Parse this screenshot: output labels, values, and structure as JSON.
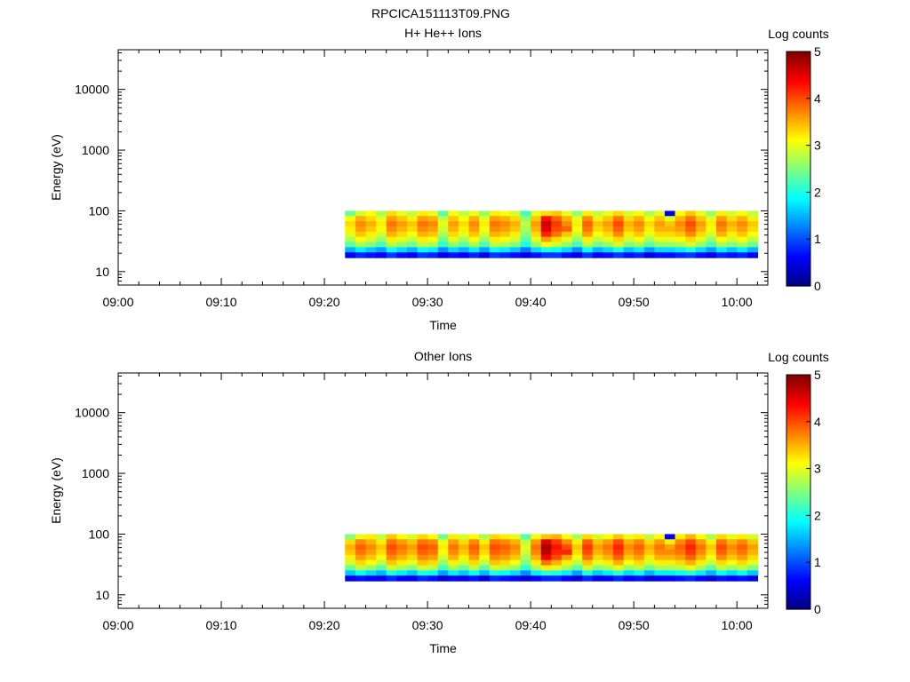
{
  "figure_title": "RPCICA151113T09.PNG",
  "chart_data": [
    {
      "type": "heatmap",
      "title": "H+ He++ Ions",
      "xlabel": "Time",
      "ylabel": "Energy (eV)",
      "x_ticks": [
        "09:00",
        "09:10",
        "09:20",
        "09:30",
        "09:40",
        "09:50",
        "10:00"
      ],
      "x_range": [
        "09:00",
        "10:03"
      ],
      "y_ticks": [
        "10",
        "100",
        "1000",
        "10000"
      ],
      "y_scale": "log",
      "y_range": [
        6,
        45000
      ],
      "colorbar": {
        "label": "Log counts",
        "ticks": [
          "0",
          "1",
          "2",
          "3",
          "4",
          "5"
        ],
        "range": [
          0,
          5
        ],
        "colormap": "jet"
      },
      "data_time_range": [
        "09:22",
        "10:02"
      ],
      "data_energy_range": [
        17,
        100
      ],
      "time_bins": [
        "09:22",
        "09:23",
        "09:24",
        "09:25",
        "09:26",
        "09:27",
        "09:28",
        "09:29",
        "09:30",
        "09:31",
        "09:32",
        "09:33",
        "09:34",
        "09:35",
        "09:36",
        "09:37",
        "09:38",
        "09:39",
        "09:40",
        "09:41",
        "09:42",
        "09:43",
        "09:44",
        "09:45",
        "09:46",
        "09:47",
        "09:48",
        "09:49",
        "09:50",
        "09:51",
        "09:52",
        "09:53",
        "09:54",
        "09:55",
        "09:56",
        "09:57",
        "09:58",
        "09:59",
        "10:00",
        "10:01"
      ],
      "energy_bins": [
        100,
        80,
        65,
        52,
        43,
        35,
        29,
        24,
        20
      ],
      "z_log_counts": [
        [
          2.4,
          2.9,
          3.1,
          2.7,
          3.3,
          3.0,
          2.8,
          3.2,
          3.0,
          2.3,
          3.1,
          2.8,
          3.0,
          2.6,
          3.2,
          3.1,
          2.9,
          2.2,
          3.0,
          3.3,
          3.4,
          3.0,
          2.6,
          3.2,
          2.8,
          3.0,
          3.3,
          2.9,
          3.1,
          2.7,
          3.0,
          0.5,
          3.1,
          3.4,
          3.0,
          2.6,
          3.2,
          2.9,
          3.1,
          2.8
        ],
        [
          3.1,
          3.5,
          3.3,
          3.0,
          3.6,
          3.4,
          3.2,
          3.6,
          3.5,
          2.8,
          3.4,
          3.1,
          3.5,
          3.0,
          3.6,
          3.5,
          3.3,
          2.6,
          3.4,
          4.3,
          3.9,
          3.5,
          3.0,
          3.7,
          3.2,
          3.4,
          3.8,
          3.3,
          3.5,
          3.1,
          3.4,
          3.0,
          3.5,
          3.8,
          3.4,
          3.0,
          3.6,
          3.3,
          3.5,
          3.2
        ],
        [
          3.3,
          3.7,
          3.5,
          3.2,
          3.8,
          3.6,
          3.4,
          3.8,
          3.7,
          3.0,
          3.6,
          3.3,
          3.7,
          3.2,
          3.8,
          3.7,
          3.5,
          2.8,
          3.6,
          4.6,
          4.1,
          3.7,
          3.2,
          3.9,
          3.4,
          3.6,
          4.0,
          3.5,
          3.7,
          3.3,
          3.6,
          3.4,
          3.7,
          4.0,
          3.6,
          3.2,
          3.8,
          3.5,
          3.7,
          3.4
        ],
        [
          3.2,
          3.6,
          3.4,
          3.1,
          3.7,
          3.5,
          3.3,
          3.7,
          3.6,
          2.9,
          3.5,
          3.2,
          3.6,
          3.1,
          3.7,
          3.6,
          3.4,
          2.7,
          3.5,
          4.5,
          4.0,
          3.9,
          3.1,
          3.8,
          3.3,
          3.5,
          3.9,
          3.4,
          3.6,
          3.2,
          3.5,
          3.5,
          3.6,
          3.9,
          3.5,
          3.1,
          3.7,
          3.4,
          3.6,
          3.3
        ],
        [
          3.0,
          3.4,
          3.2,
          2.9,
          3.5,
          3.3,
          3.1,
          3.5,
          3.4,
          2.7,
          3.3,
          3.0,
          3.4,
          2.9,
          3.5,
          3.4,
          3.2,
          2.5,
          3.3,
          4.2,
          3.8,
          3.4,
          2.9,
          3.6,
          3.1,
          3.3,
          3.7,
          3.2,
          3.4,
          3.0,
          3.3,
          3.3,
          3.4,
          3.7,
          3.3,
          2.9,
          3.5,
          3.2,
          3.4,
          3.1
        ],
        [
          2.7,
          3.1,
          2.9,
          2.6,
          3.2,
          3.0,
          2.8,
          3.2,
          3.1,
          2.4,
          3.0,
          2.7,
          3.1,
          2.6,
          3.2,
          3.1,
          2.9,
          2.3,
          3.0,
          3.6,
          3.3,
          3.0,
          2.6,
          3.2,
          2.8,
          3.0,
          3.3,
          2.9,
          3.1,
          2.7,
          3.0,
          3.0,
          3.1,
          3.3,
          3.0,
          2.6,
          3.1,
          2.9,
          3.1,
          2.8
        ],
        [
          2.3,
          2.7,
          2.5,
          2.2,
          2.8,
          2.6,
          2.4,
          2.8,
          2.7,
          2.1,
          2.6,
          2.3,
          2.7,
          2.2,
          2.8,
          2.7,
          2.5,
          2.0,
          2.6,
          3.1,
          2.9,
          2.6,
          2.2,
          2.8,
          2.4,
          2.6,
          2.9,
          2.5,
          2.7,
          2.3,
          2.6,
          2.6,
          2.7,
          2.9,
          2.6,
          2.2,
          2.7,
          2.5,
          2.7,
          2.4
        ],
        [
          1.5,
          1.8,
          1.6,
          1.4,
          1.9,
          1.7,
          1.5,
          1.9,
          1.8,
          1.3,
          1.7,
          1.5,
          1.8,
          1.4,
          1.9,
          1.8,
          1.6,
          1.2,
          1.7,
          2.0,
          1.9,
          1.7,
          1.3,
          1.9,
          1.5,
          1.7,
          2.0,
          1.6,
          1.8,
          1.4,
          1.7,
          1.7,
          1.8,
          2.0,
          1.7,
          1.4,
          1.8,
          1.6,
          1.8,
          1.5
        ],
        [
          0.6,
          0.8,
          0.7,
          0.6,
          0.9,
          0.7,
          0.6,
          0.9,
          0.8,
          0.5,
          0.7,
          0.6,
          0.8,
          0.5,
          0.9,
          0.8,
          0.7,
          0.5,
          0.7,
          0.9,
          0.9,
          0.7,
          0.5,
          0.9,
          0.6,
          0.7,
          0.9,
          0.7,
          0.8,
          0.5,
          0.7,
          0.7,
          0.8,
          0.9,
          0.7,
          0.5,
          0.8,
          0.7,
          0.8,
          0.6
        ]
      ]
    },
    {
      "type": "heatmap",
      "title": "Other Ions",
      "xlabel": "Time",
      "ylabel": "Energy (eV)",
      "x_ticks": [
        "09:00",
        "09:10",
        "09:20",
        "09:30",
        "09:40",
        "09:50",
        "10:00"
      ],
      "x_range": [
        "09:00",
        "10:03"
      ],
      "y_ticks": [
        "10",
        "100",
        "1000",
        "10000"
      ],
      "y_scale": "log",
      "y_range": [
        6,
        45000
      ],
      "colorbar": {
        "label": "Log counts",
        "ticks": [
          "0",
          "1",
          "2",
          "3",
          "4",
          "5"
        ],
        "range": [
          0,
          5
        ],
        "colormap": "jet"
      },
      "data_time_range": [
        "09:22",
        "10:02"
      ],
      "data_energy_range": [
        17,
        100
      ],
      "time_bins": [
        "09:22",
        "09:23",
        "09:24",
        "09:25",
        "09:26",
        "09:27",
        "09:28",
        "09:29",
        "09:30",
        "09:31",
        "09:32",
        "09:33",
        "09:34",
        "09:35",
        "09:36",
        "09:37",
        "09:38",
        "09:39",
        "09:40",
        "09:41",
        "09:42",
        "09:43",
        "09:44",
        "09:45",
        "09:46",
        "09:47",
        "09:48",
        "09:49",
        "09:50",
        "09:51",
        "09:52",
        "09:53",
        "09:54",
        "09:55",
        "09:56",
        "09:57",
        "09:58",
        "09:59",
        "10:00",
        "10:01"
      ],
      "energy_bins": [
        100,
        80,
        65,
        52,
        43,
        35,
        29,
        24,
        20
      ],
      "z_log_counts": [
        [
          2.5,
          3.0,
          3.2,
          2.8,
          3.4,
          3.1,
          2.9,
          3.3,
          3.1,
          2.4,
          3.2,
          2.9,
          3.1,
          2.7,
          3.3,
          3.2,
          3.0,
          2.3,
          3.1,
          3.4,
          3.5,
          3.1,
          2.7,
          3.3,
          2.9,
          3.1,
          3.4,
          3.0,
          3.2,
          2.8,
          3.1,
          0.6,
          3.2,
          3.5,
          3.1,
          2.7,
          3.3,
          3.0,
          3.2,
          2.9
        ],
        [
          3.3,
          3.7,
          3.5,
          3.2,
          3.8,
          3.6,
          3.4,
          3.8,
          3.7,
          3.0,
          3.6,
          3.3,
          3.7,
          3.2,
          3.8,
          3.7,
          3.5,
          2.8,
          3.6,
          4.5,
          4.1,
          3.7,
          3.2,
          3.9,
          3.4,
          3.6,
          4.0,
          3.5,
          3.7,
          3.3,
          3.6,
          3.2,
          3.7,
          4.0,
          3.6,
          3.2,
          3.8,
          3.5,
          3.7,
          3.4
        ],
        [
          3.5,
          3.9,
          3.7,
          3.4,
          4.0,
          3.8,
          3.6,
          4.0,
          3.9,
          3.2,
          3.8,
          3.5,
          3.9,
          3.4,
          4.0,
          3.9,
          3.7,
          3.0,
          3.8,
          4.8,
          4.3,
          4.0,
          3.4,
          4.1,
          3.6,
          3.8,
          4.2,
          3.7,
          3.9,
          3.5,
          3.8,
          3.6,
          3.9,
          4.2,
          3.8,
          3.4,
          4.0,
          3.7,
          3.9,
          3.6
        ],
        [
          3.4,
          3.8,
          3.6,
          3.3,
          3.9,
          3.7,
          3.5,
          3.9,
          3.8,
          3.1,
          3.7,
          3.4,
          3.8,
          3.3,
          3.9,
          3.8,
          3.6,
          2.9,
          3.7,
          4.7,
          4.2,
          4.2,
          3.3,
          4.0,
          3.5,
          3.7,
          4.1,
          3.6,
          3.8,
          3.4,
          3.7,
          3.7,
          3.8,
          4.1,
          3.7,
          3.3,
          3.9,
          3.6,
          3.8,
          3.5
        ],
        [
          3.2,
          3.6,
          3.4,
          3.1,
          3.7,
          3.5,
          3.3,
          3.7,
          3.6,
          2.9,
          3.5,
          3.2,
          3.6,
          3.1,
          3.7,
          3.6,
          3.4,
          2.7,
          3.5,
          4.4,
          4.0,
          3.6,
          3.1,
          3.8,
          3.3,
          3.5,
          3.9,
          3.4,
          3.6,
          3.2,
          3.5,
          3.5,
          3.6,
          3.9,
          3.5,
          3.1,
          3.7,
          3.4,
          3.6,
          3.3
        ],
        [
          2.9,
          3.3,
          3.1,
          2.8,
          3.4,
          3.2,
          3.0,
          3.4,
          3.3,
          2.6,
          3.2,
          2.9,
          3.3,
          2.8,
          3.4,
          3.3,
          3.1,
          2.5,
          3.2,
          3.8,
          3.5,
          3.2,
          2.8,
          3.4,
          3.0,
          3.2,
          3.5,
          3.1,
          3.3,
          2.9,
          3.2,
          3.2,
          3.3,
          3.5,
          3.2,
          2.8,
          3.3,
          3.1,
          3.3,
          3.0
        ],
        [
          2.4,
          2.8,
          2.6,
          2.3,
          2.9,
          2.7,
          2.5,
          2.9,
          2.8,
          2.2,
          2.7,
          2.4,
          2.8,
          2.3,
          2.9,
          2.8,
          2.6,
          2.1,
          2.7,
          3.2,
          3.0,
          2.7,
          2.3,
          2.9,
          2.5,
          2.7,
          3.0,
          2.6,
          2.8,
          2.4,
          2.7,
          2.7,
          2.8,
          3.0,
          2.7,
          2.3,
          2.8,
          2.6,
          2.8,
          2.5
        ],
        [
          1.6,
          1.9,
          1.7,
          1.5,
          2.0,
          1.8,
          1.6,
          2.0,
          1.9,
          1.4,
          1.8,
          1.6,
          1.9,
          1.5,
          2.0,
          1.9,
          1.7,
          1.3,
          1.8,
          2.1,
          2.0,
          1.8,
          1.4,
          2.0,
          1.6,
          1.8,
          2.1,
          1.7,
          1.9,
          1.5,
          1.8,
          1.8,
          1.9,
          2.1,
          1.8,
          1.5,
          1.9,
          1.7,
          1.9,
          1.6
        ],
        [
          0.5,
          0.7,
          0.6,
          0.5,
          0.8,
          0.6,
          0.5,
          0.8,
          0.7,
          0.4,
          0.6,
          0.5,
          0.7,
          0.4,
          0.8,
          0.7,
          0.6,
          0.4,
          0.6,
          0.8,
          0.8,
          0.6,
          0.4,
          0.8,
          0.5,
          0.6,
          0.8,
          0.6,
          0.7,
          0.4,
          0.6,
          0.6,
          0.7,
          0.8,
          0.6,
          0.4,
          0.7,
          0.6,
          0.7,
          0.5
        ]
      ]
    }
  ]
}
